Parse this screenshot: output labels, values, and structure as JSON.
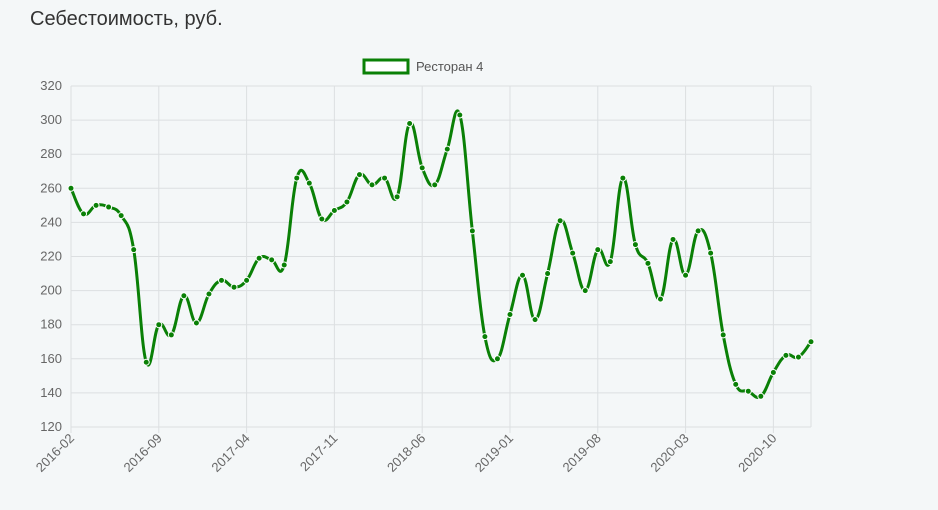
{
  "page": {
    "title": "Себестоимость, руб."
  },
  "chart_data": {
    "type": "line",
    "title": "Себестоимость, руб.",
    "xlabel": "",
    "ylabel": "",
    "ylim": [
      120,
      320
    ],
    "y_ticks": [
      120,
      140,
      160,
      180,
      200,
      220,
      240,
      260,
      280,
      300,
      320
    ],
    "x_tick_labels": [
      "2016-02",
      "2016-09",
      "2017-04",
      "2017-11",
      "2018-06",
      "2019-01",
      "2019-08",
      "2020-03",
      "2020-10"
    ],
    "grid": true,
    "legend_position": "top-center",
    "colors": {
      "series": "#0a8006",
      "grid": "#dcdfe1",
      "background": "#f4f7f8"
    },
    "x": [
      "2016-02",
      "2016-03",
      "2016-04",
      "2016-05",
      "2016-06",
      "2016-07",
      "2016-08",
      "2016-09",
      "2016-10",
      "2016-11",
      "2016-12",
      "2017-01",
      "2017-02",
      "2017-03",
      "2017-04",
      "2017-05",
      "2017-06",
      "2017-07",
      "2017-08",
      "2017-09",
      "2017-10",
      "2017-11",
      "2017-12",
      "2018-01",
      "2018-02",
      "2018-03",
      "2018-04",
      "2018-05",
      "2018-06",
      "2018-07",
      "2018-08",
      "2018-09",
      "2018-10",
      "2018-11",
      "2018-12",
      "2019-01",
      "2019-02",
      "2019-03",
      "2019-04",
      "2019-05",
      "2019-06",
      "2019-07",
      "2019-08",
      "2019-09",
      "2019-10",
      "2019-11",
      "2019-12",
      "2020-01",
      "2020-02",
      "2020-03",
      "2020-04",
      "2020-05",
      "2020-06",
      "2020-07",
      "2020-08",
      "2020-09",
      "2020-10",
      "2020-11",
      "2020-12",
      "2021-01"
    ],
    "series": [
      {
        "name": "Ресторан 4",
        "values": [
          260,
          245,
          250,
          249,
          244,
          224,
          158,
          180,
          174,
          197,
          181,
          198,
          206,
          202,
          206,
          219,
          218,
          215,
          266,
          263,
          242,
          247,
          252,
          268,
          262,
          266,
          255,
          298,
          272,
          262,
          283,
          303,
          235,
          173,
          160,
          186,
          209,
          183,
          210,
          241,
          222,
          200,
          224,
          217,
          266,
          227,
          216,
          195,
          230,
          209,
          235,
          222,
          174,
          145,
          141,
          138,
          152,
          162,
          161,
          170
        ]
      }
    ]
  }
}
